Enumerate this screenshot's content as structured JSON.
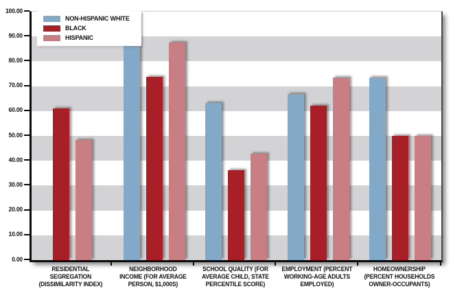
{
  "chart_data": {
    "type": "bar",
    "title": "",
    "xlabel": "",
    "ylabel": "",
    "ylim": [
      0,
      100
    ],
    "grid": "alternating-horizontal-bands",
    "band_colors": {
      "light": "#ffffff",
      "dark": "#d3d3d5"
    },
    "legend_position": "top-left",
    "y_ticks": [
      "0.00",
      "10.00",
      "20.00",
      "30.00",
      "40.00",
      "50.00",
      "60.00",
      "70.00",
      "80.00",
      "90.00",
      "100.00"
    ],
    "categories": [
      "RESIDENTIAL SEGREGATION (DISSIMILARITY INDEX)",
      "NEIGHBORHOOD INCOME (FOR AVERAGE PERSON, $1,000S)",
      "SCHOOL QUALITY (FOR AVERAGE CHILD, STATE PERCENTILE SCORE)",
      "EMPLOYMENT (PERCENT WORKING-AGE ADULTS EMPLOYED)",
      "HOMEOWNERSHIP (PERCENT HOUSEHOLDS OWNER-OCCUPANTS)"
    ],
    "series": [
      {
        "name": "NON-HISPANIC WHITE",
        "color": "#82a9c8",
        "values": [
          null,
          98.8,
          63.3,
          66.8,
          73.4
        ]
      },
      {
        "name": "BLACK",
        "color": "#a81f27",
        "values": [
          61.0,
          73.7,
          36.1,
          62.1,
          50.0
        ]
      },
      {
        "name": "HISPANIC",
        "color": "#c87e83",
        "values": [
          48.4,
          87.5,
          42.8,
          73.5,
          49.9
        ]
      }
    ]
  },
  "axis": {
    "color": "#0a0a0a",
    "frame_right_color": "#474747",
    "frame_top_color": "#cfcfcf"
  }
}
